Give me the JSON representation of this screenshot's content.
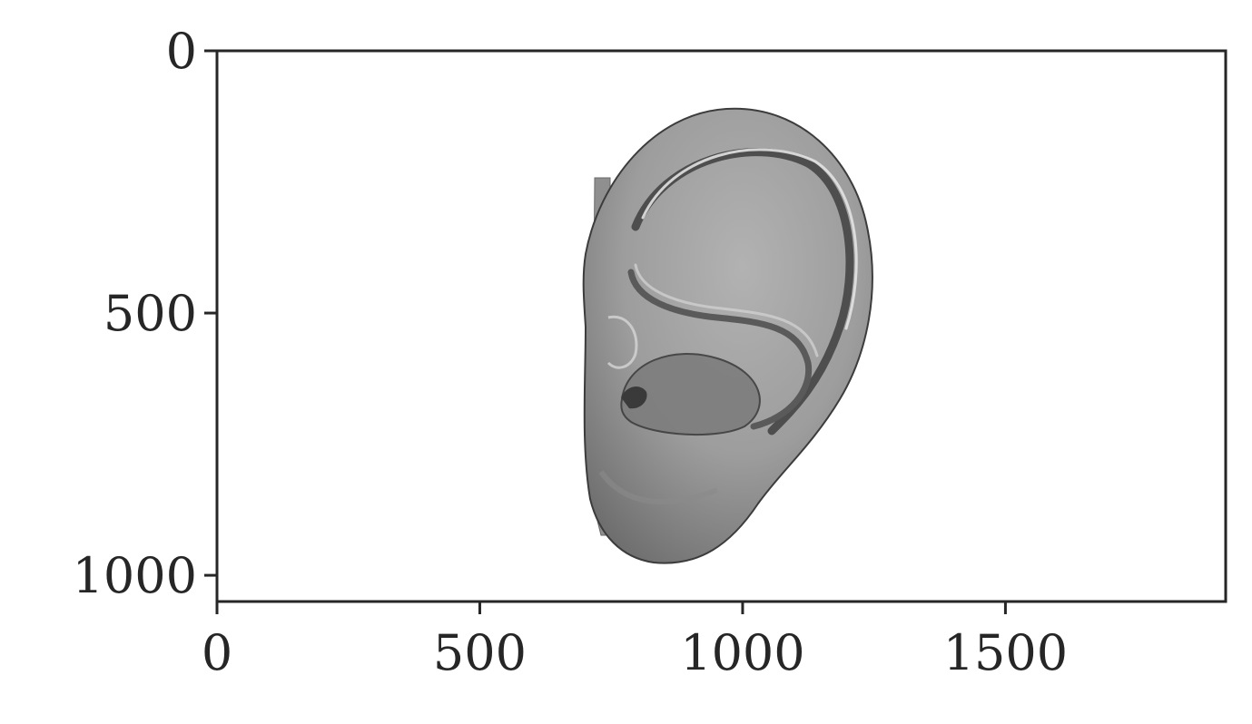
{
  "figure": {
    "image_subject": "ear-3d-render",
    "x_ticks": [
      "0",
      "500",
      "1000",
      "1500"
    ],
    "y_ticks": [
      "0",
      "500",
      "1000"
    ],
    "x_tick_values": [
      0,
      500,
      1000,
      1500
    ],
    "y_tick_values": [
      0,
      500,
      1000
    ],
    "x_range": [
      0,
      1919
    ],
    "y_range": [
      1050,
      0
    ],
    "colors": {
      "axis": "#262626",
      "ear_base": "#9a9a9a",
      "ear_shadow": "#4a4a4a",
      "ear_highlight": "#d8d8d8"
    }
  }
}
